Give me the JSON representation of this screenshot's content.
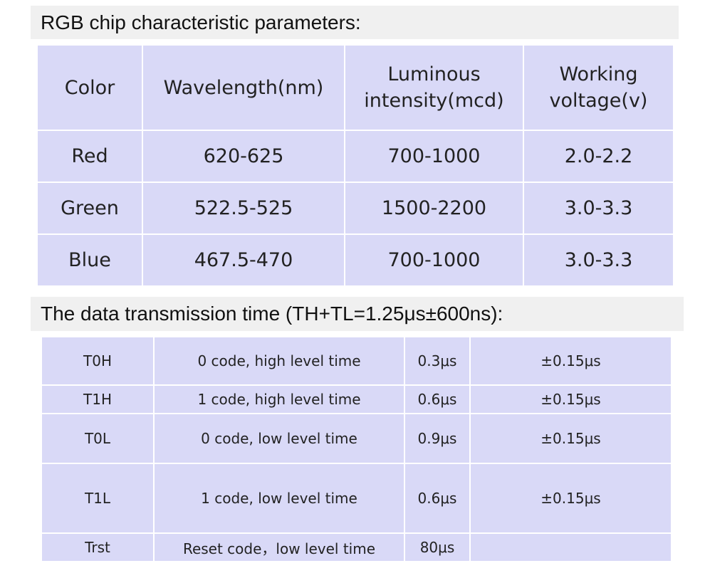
{
  "spec": {
    "title": "RGB chip characteristic parameters:",
    "header": [
      "Color",
      "Wavelength(nm)",
      "Luminous\nintensity(mcd)",
      "Working\nvoltage(v)"
    ],
    "rows": [
      [
        "Red",
        "620-625",
        "700-1000",
        "2.0-2.2"
      ],
      [
        "Green",
        "522.5-525",
        "1500-2200",
        "3.0-3.3"
      ],
      [
        "Blue",
        "467.5-470",
        "700-1000",
        "3.0-3.3"
      ]
    ]
  },
  "timing": {
    "title": "The data transmission time (TH+TL=1.25μs±600ns):",
    "rows": [
      [
        "T0H",
        "0 code, high level time",
        "0.3μs",
        "±0.15μs"
      ],
      [
        "T1H",
        "1 code, high level time",
        "0.6μs",
        "±0.15μs"
      ],
      [
        "T0L",
        "0 code, low level time",
        "0.9μs",
        "±0.15μs"
      ],
      [
        "T1L",
        "1 code, low level time",
        "0.6μs",
        "±0.15μs"
      ],
      [
        "Trst",
        "Reset code，low level time",
        "80μs"
      ]
    ]
  }
}
